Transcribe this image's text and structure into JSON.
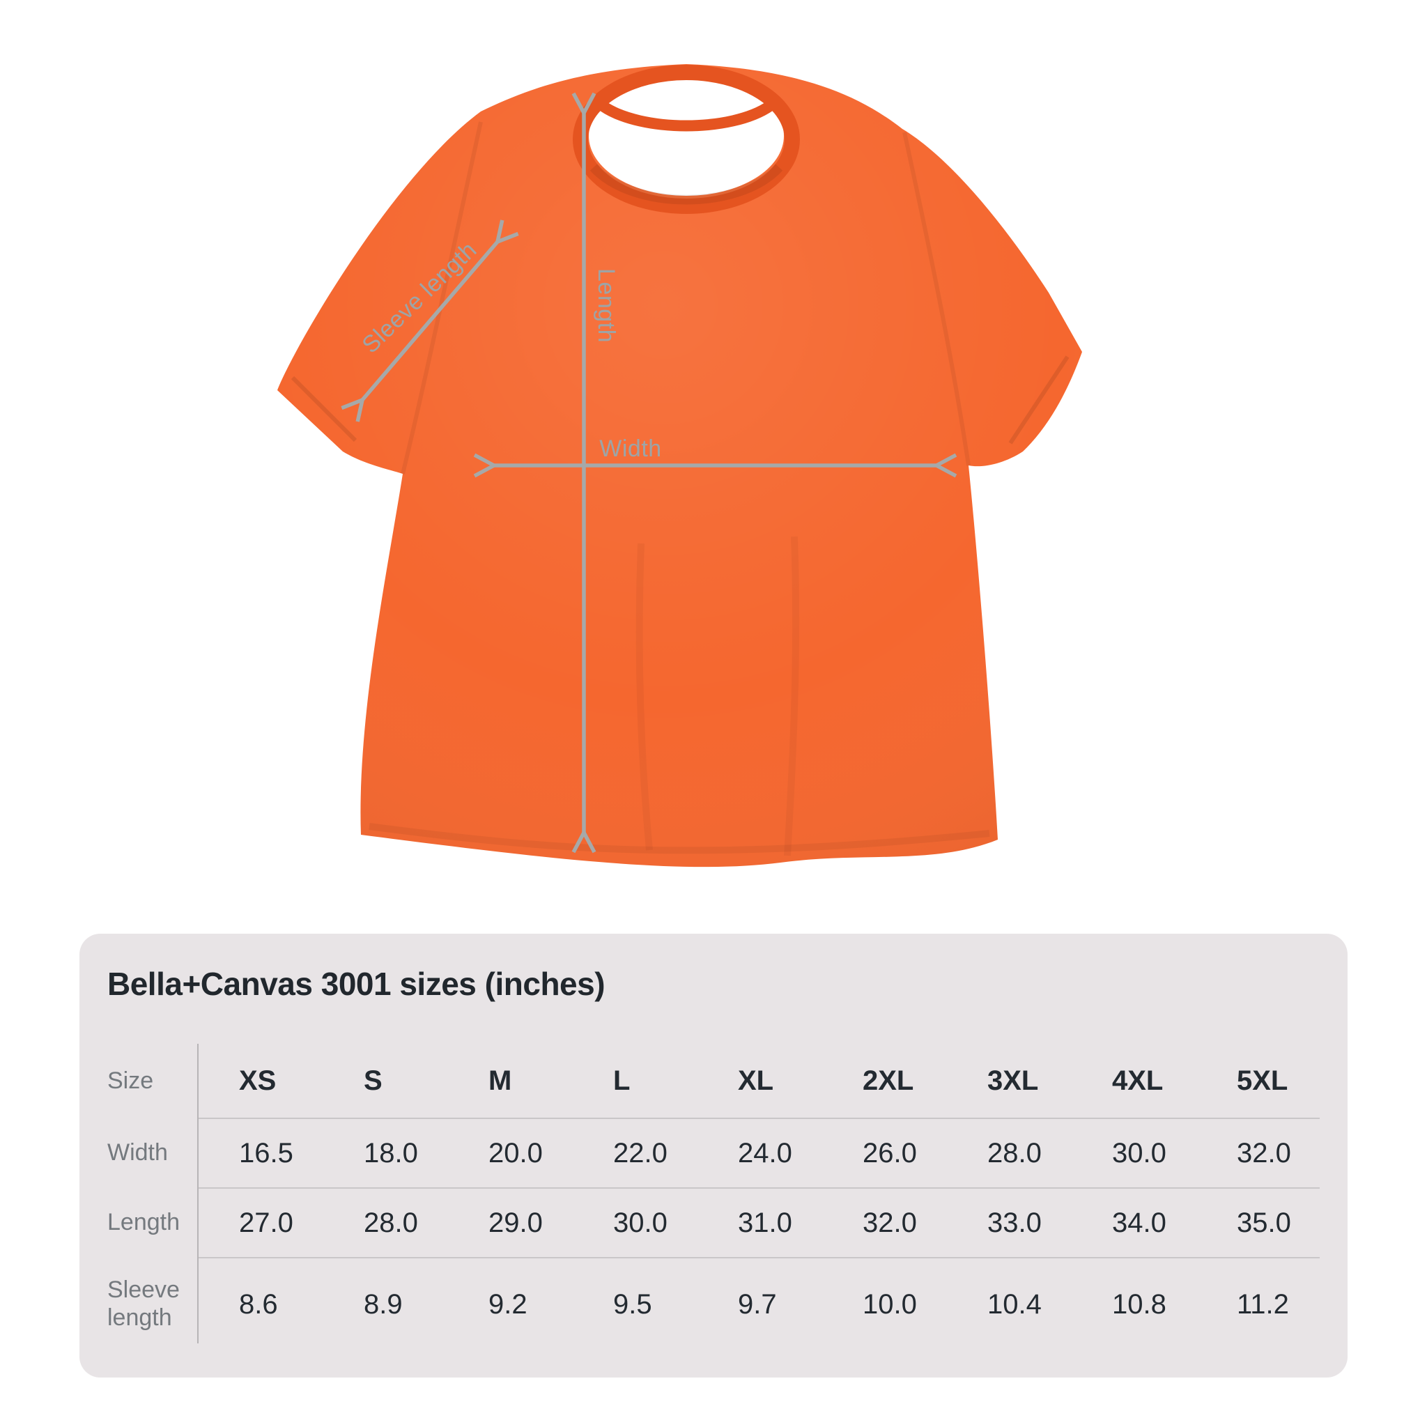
{
  "tshirt": {
    "description": "orange crew-neck t-shirt front view with measurement arrows",
    "annotations": {
      "length": "Length",
      "width": "Width",
      "sleeve_length": "Sleeve length"
    }
  },
  "size_chart": {
    "title": "Bella+Canvas 3001 sizes (inches)",
    "table": {
      "corner_label": "Size",
      "columns": [
        "XS",
        "S",
        "M",
        "L",
        "XL",
        "2XL",
        "3XL",
        "4XL",
        "5XL"
      ],
      "rows": [
        {
          "label": "Width",
          "values": [
            "16.5",
            "18.0",
            "20.0",
            "22.0",
            "24.0",
            "26.0",
            "28.0",
            "30.0",
            "32.0"
          ]
        },
        {
          "label": "Length",
          "values": [
            "27.0",
            "28.0",
            "29.0",
            "30.0",
            "31.0",
            "32.0",
            "33.0",
            "34.0",
            "35.0"
          ]
        },
        {
          "label": "Sleeve length",
          "values": [
            "8.6",
            "8.9",
            "9.2",
            "9.5",
            "9.7",
            "10.0",
            "10.4",
            "10.8",
            "11.2"
          ]
        }
      ]
    }
  },
  "chart_data": {
    "type": "table",
    "title": "Bella+Canvas 3001 sizes (inches)",
    "units": "inches",
    "columns": [
      "Size",
      "XS",
      "S",
      "M",
      "L",
      "XL",
      "2XL",
      "3XL",
      "4XL",
      "5XL"
    ],
    "rows": [
      [
        "Width",
        16.5,
        18.0,
        20.0,
        22.0,
        24.0,
        26.0,
        28.0,
        30.0,
        32.0
      ],
      [
        "Length",
        27.0,
        28.0,
        29.0,
        30.0,
        31.0,
        32.0,
        33.0,
        34.0,
        35.0
      ],
      [
        "Sleeve length",
        8.6,
        8.9,
        9.2,
        9.5,
        9.7,
        10.0,
        10.4,
        10.8,
        11.2
      ]
    ]
  },
  "colors": {
    "page_bg": "#ffffff",
    "shirt_orange": "#f5672f",
    "shirt_shade": "#e55420",
    "arrow_gray": "#a6a9a9",
    "label_gray": "#9ea4a6",
    "card_bg": "#e8e4e6",
    "title_text": "#21272d",
    "cell_text": "#232a31",
    "row_label_text": "#74797e",
    "rule": "#c9c6c8",
    "divider": "#b7b4b6"
  }
}
